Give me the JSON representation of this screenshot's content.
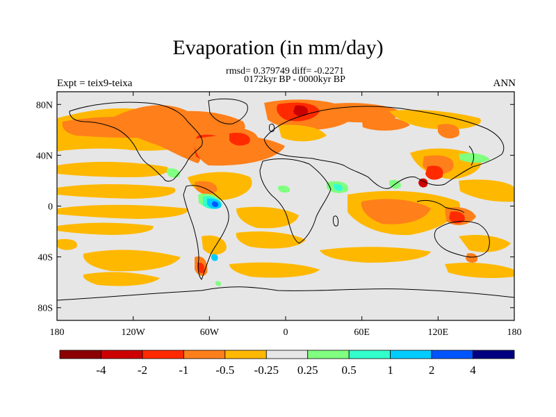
{
  "title": "Evaporation (in mm/day)",
  "stats_line": "rmsd= 0.379749 diff= -0.2271",
  "period_line": "0172kyr BP - 0000kyr BP",
  "experiment": "Expt = teix9-teixa",
  "season": "ANN",
  "map": {
    "lon_range": [
      -180,
      180
    ],
    "lat_range": [
      -90,
      90
    ],
    "x_ticks": [
      {
        "value": -180,
        "label": "180"
      },
      {
        "value": -120,
        "label": "120W"
      },
      {
        "value": -60,
        "label": "60W"
      },
      {
        "value": 0,
        "label": "0"
      },
      {
        "value": 60,
        "label": "60E"
      },
      {
        "value": 120,
        "label": "120E"
      },
      {
        "value": 180,
        "label": "180"
      }
    ],
    "y_ticks": [
      {
        "value": 80,
        "label": "80N"
      },
      {
        "value": 40,
        "label": "40N"
      },
      {
        "value": 0,
        "label": "0"
      },
      {
        "value": -40,
        "label": "40S"
      },
      {
        "value": -80,
        "label": "80S"
      }
    ],
    "background_color": "#e6e6e6"
  },
  "colorbar": {
    "colors": [
      "#8b0000",
      "#cc0000",
      "#ff2a00",
      "#ff7f1a",
      "#ffb800",
      "#e6e6e6",
      "#80ff80",
      "#33ffcc",
      "#00ccff",
      "#0055ff",
      "#000080"
    ],
    "labels": [
      "-4",
      "-2",
      "-1",
      "-0.5",
      "-0.25",
      "0.25",
      "0.5",
      "1",
      "2",
      "4"
    ]
  },
  "chart_data": {
    "type": "heatmap",
    "title": "Evaporation (in mm/day)",
    "subtitle": [
      "rmsd= 0.379749 diff= -0.2271",
      "0172kyr BP - 0000kyr BP"
    ],
    "left_label": "Expt = teix9-teixa",
    "right_label": "ANN",
    "x_axis": {
      "range": [
        -180,
        180
      ],
      "ticks": [
        "180",
        "120W",
        "60W",
        "0",
        "60E",
        "120E",
        "180"
      ]
    },
    "y_axis": {
      "range": [
        -90,
        90
      ],
      "ticks": [
        "80N",
        "40N",
        "0",
        "40S",
        "80S"
      ]
    },
    "levels": [
      -4,
      -2,
      -1,
      -0.5,
      -0.25,
      0.25,
      0.5,
      1,
      2,
      4
    ],
    "regions": [
      {
        "lon": [
          -150,
          -70
        ],
        "lat": [
          30,
          65
        ],
        "level": -0.5,
        "color": "#ff7f1a"
      },
      {
        "lon": [
          -60,
          -25
        ],
        "lat": [
          42,
          60
        ],
        "level": -1,
        "color": "#ff2a00"
      },
      {
        "lon": [
          -10,
          30
        ],
        "lat": [
          60,
          78
        ],
        "level": -1,
        "color": "#ff2a00"
      },
      {
        "lon": [
          -180,
          -100
        ],
        "lat": [
          20,
          35
        ],
        "level": -0.25,
        "color": "#ffb800"
      },
      {
        "lon": [
          -180,
          -90
        ],
        "lat": [
          -10,
          10
        ],
        "level": -0.25,
        "color": "#ffb800"
      },
      {
        "lon": [
          60,
          100
        ],
        "lat": [
          -25,
          5
        ],
        "level": -0.5,
        "color": "#ff7f1a"
      },
      {
        "lon": [
          120,
          150
        ],
        "lat": [
          10,
          35
        ],
        "level": -1,
        "color": "#ff2a00"
      },
      {
        "lon": [
          -60,
          -40
        ],
        "lat": [
          -5,
          5
        ],
        "level": 1,
        "color": "#00ccff"
      },
      {
        "lon": [
          130,
          160
        ],
        "lat": [
          -20,
          -5
        ],
        "level": -1,
        "color": "#ff2a00"
      }
    ]
  }
}
